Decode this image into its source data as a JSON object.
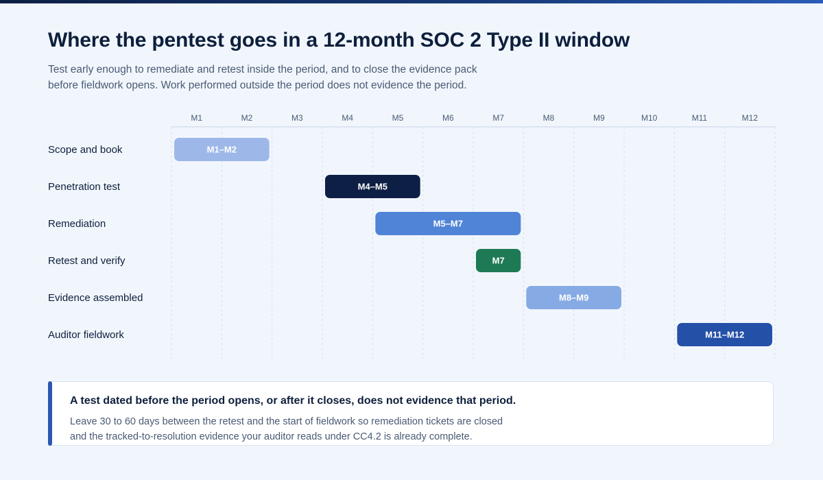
{
  "header": {
    "title": "Where the pentest goes in a 12-month SOC 2 Type II window",
    "subtitle_lines": [
      "Test early enough to remediate and retest inside the period, and to close the evidence pack",
      "before fieldwork opens. Work performed outside the period does not evidence the period."
    ]
  },
  "chart_data": {
    "type": "gantt",
    "months": [
      "M1",
      "M2",
      "M3",
      "M4",
      "M5",
      "M6",
      "M7",
      "M8",
      "M9",
      "M10",
      "M11",
      "M12"
    ],
    "tasks": [
      {
        "name": "Scope and book",
        "start": 1,
        "end": 2,
        "label": "M1–M2",
        "color": "#9db8e8",
        "text_color": "#ffffff"
      },
      {
        "name": "Penetration test",
        "start": 4,
        "end": 5,
        "label": "M4–M5",
        "color": "#0d1f44",
        "text_color": "#ffffff"
      },
      {
        "name": "Remediation",
        "start": 5,
        "end": 7,
        "label": "M5–M7",
        "color": "#4f84d6",
        "text_color": "#ffffff"
      },
      {
        "name": "Retest and verify",
        "start": 7,
        "end": 7,
        "label": "M7",
        "color": "#1e7a55",
        "text_color": "#ffffff"
      },
      {
        "name": "Evidence assembled",
        "start": 8,
        "end": 9,
        "label": "M8–M9",
        "color": "#86aae3",
        "text_color": "#ffffff"
      },
      {
        "name": "Auditor fieldwork",
        "start": 11,
        "end": 12,
        "label": "M11–M12",
        "color": "#2550a8",
        "text_color": "#ffffff"
      }
    ],
    "grid": true,
    "gridline_color": "#d3ddec",
    "axis_line_color": "#d3ddec"
  },
  "callout": {
    "headline": "A test dated before the period opens, or after it closes, does not evidence that period.",
    "body_lines": [
      "Leave 30 to 60 days between the retest and the start of fieldwork so remediation tickets are closed",
      "and the tracked-to-resolution evidence your auditor reads under CC4.2 is already complete."
    ],
    "accent_color": "#2b57b0"
  }
}
